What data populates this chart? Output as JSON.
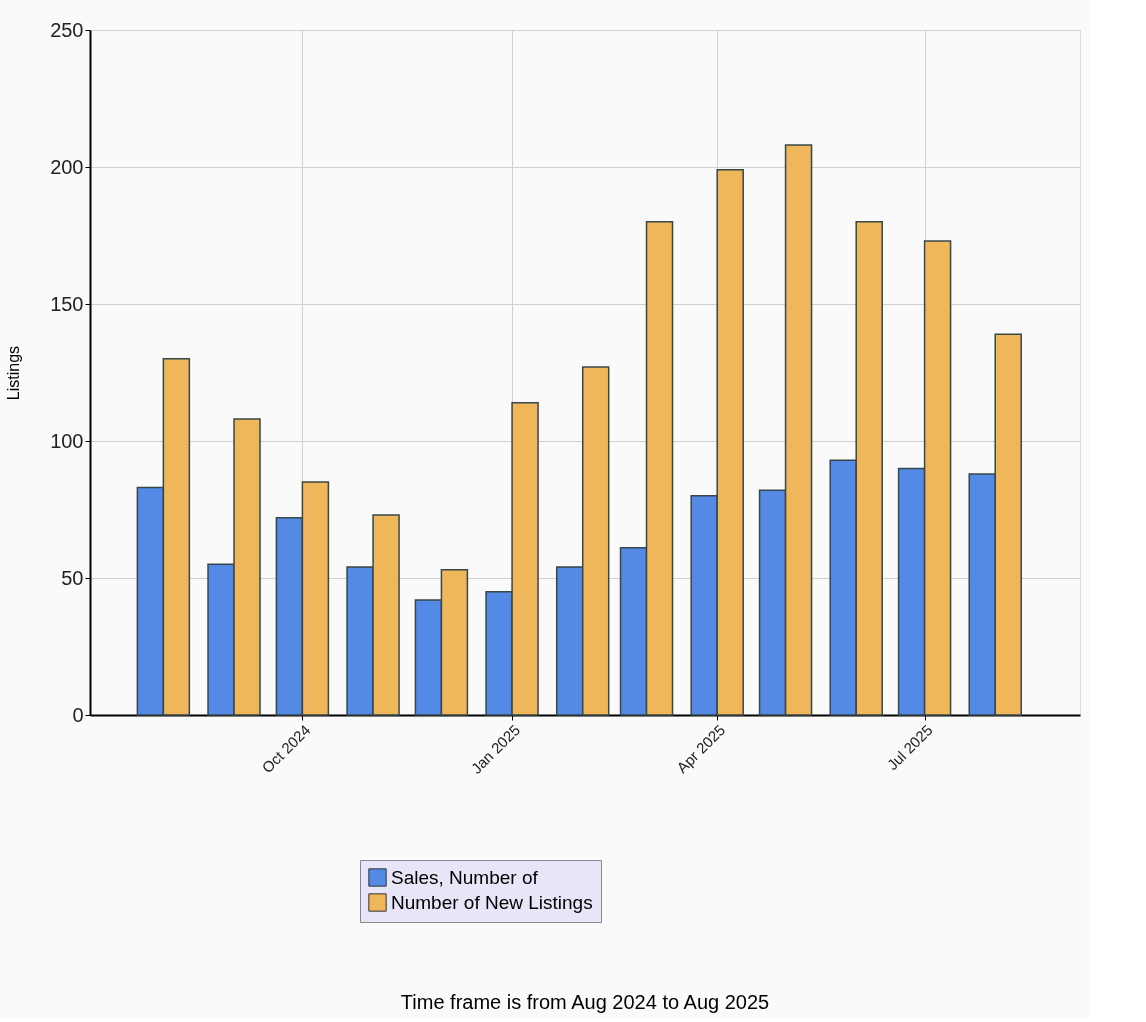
{
  "chart_data": {
    "type": "bar",
    "ylabel": "Listings",
    "x": [
      "2024-08",
      "2024-09",
      "2024-10",
      "2024-11",
      "2024-12",
      "2025-01",
      "2025-02",
      "2025-03",
      "2025-04",
      "2025-05",
      "2025-06",
      "2025-07",
      "2025-08"
    ],
    "series": [
      {
        "name": "Sales, Number of",
        "color": "#5589e6",
        "values": [
          83,
          55,
          72,
          54,
          42,
          45,
          54,
          61,
          80,
          82,
          93,
          90,
          88
        ]
      },
      {
        "name": "Number of New Listings",
        "color": "#f0b65a",
        "values": [
          130,
          108,
          85,
          73,
          53,
          114,
          127,
          180,
          199,
          208,
          180,
          173,
          139
        ]
      }
    ],
    "xlim": [
      "2024-07-02",
      "2025-09-05"
    ],
    "xticks": [
      {
        "value": "2024-10",
        "label": "Oct 2024"
      },
      {
        "value": "2025-01",
        "label": "Jan 2025"
      },
      {
        "value": "2025-04",
        "label": "Apr 2025"
      },
      {
        "value": "2025-07",
        "label": "Jul 2025"
      }
    ],
    "ylim": [
      0,
      250
    ],
    "yticks": [
      0,
      50,
      100,
      150,
      200,
      250
    ],
    "grid": true,
    "legend": "bottom",
    "annotations": [
      "Time frame is from Aug 2024 to Aug 2025"
    ]
  }
}
